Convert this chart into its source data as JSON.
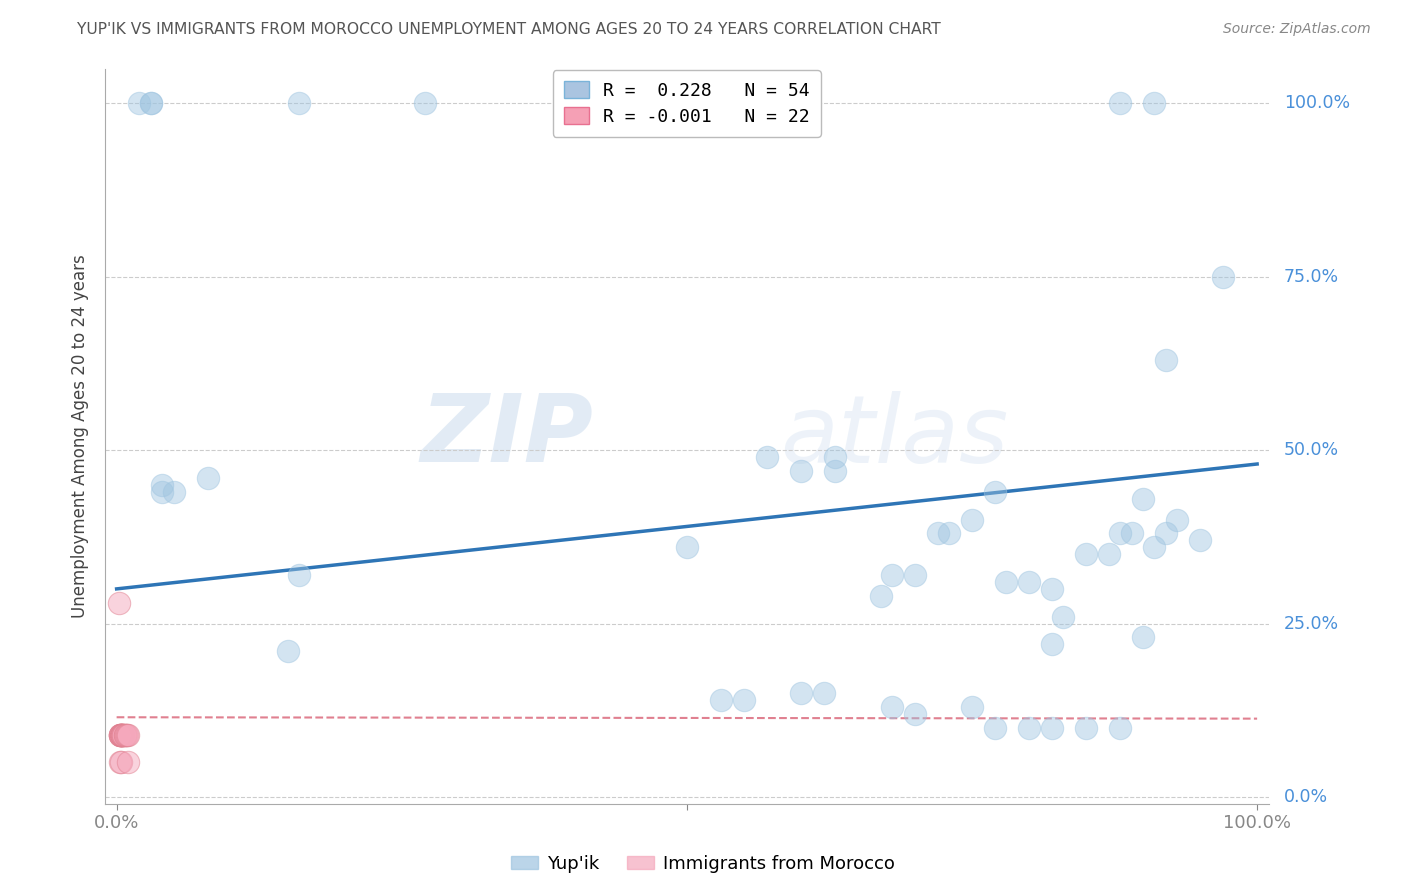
{
  "title": "YUP'IK VS IMMIGRANTS FROM MOROCCO UNEMPLOYMENT AMONG AGES 20 TO 24 YEARS CORRELATION CHART",
  "source": "Source: ZipAtlas.com",
  "ylabel_label": "Unemployment Among Ages 20 to 24 years",
  "ylabel_ticks": [
    "0.0%",
    "25.0%",
    "50.0%",
    "75.0%",
    "100.0%"
  ],
  "legend_entries": [
    {
      "label": "R =  0.228   N = 54",
      "color": "#aac4e0"
    },
    {
      "label": "R = -0.001   N = 22",
      "color": "#f5a0b5"
    }
  ],
  "bottom_legend": [
    "Yup'ik",
    "Immigrants from Morocco"
  ],
  "blue_scatter": [
    [
      0.02,
      1.0
    ],
    [
      0.03,
      1.0
    ],
    [
      0.03,
      1.0
    ],
    [
      0.16,
      1.0
    ],
    [
      0.27,
      1.0
    ],
    [
      0.88,
      1.0
    ],
    [
      0.91,
      1.0
    ],
    [
      0.04,
      0.44
    ],
    [
      0.05,
      0.44
    ],
    [
      0.04,
      0.45
    ],
    [
      0.16,
      0.32
    ],
    [
      0.08,
      0.46
    ],
    [
      0.5,
      0.36
    ],
    [
      0.57,
      0.49
    ],
    [
      0.63,
      0.49
    ],
    [
      0.6,
      0.47
    ],
    [
      0.63,
      0.47
    ],
    [
      0.67,
      0.29
    ],
    [
      0.68,
      0.32
    ],
    [
      0.7,
      0.32
    ],
    [
      0.72,
      0.38
    ],
    [
      0.73,
      0.38
    ],
    [
      0.75,
      0.4
    ],
    [
      0.77,
      0.44
    ],
    [
      0.78,
      0.31
    ],
    [
      0.8,
      0.31
    ],
    [
      0.82,
      0.3
    ],
    [
      0.83,
      0.26
    ],
    [
      0.85,
      0.35
    ],
    [
      0.87,
      0.35
    ],
    [
      0.88,
      0.38
    ],
    [
      0.89,
      0.38
    ],
    [
      0.9,
      0.43
    ],
    [
      0.91,
      0.36
    ],
    [
      0.92,
      0.38
    ],
    [
      0.93,
      0.4
    ],
    [
      0.95,
      0.37
    ],
    [
      0.97,
      0.75
    ],
    [
      0.92,
      0.63
    ],
    [
      0.53,
      0.14
    ],
    [
      0.55,
      0.14
    ],
    [
      0.6,
      0.15
    ],
    [
      0.62,
      0.15
    ],
    [
      0.68,
      0.13
    ],
    [
      0.7,
      0.12
    ],
    [
      0.75,
      0.13
    ],
    [
      0.77,
      0.1
    ],
    [
      0.8,
      0.1
    ],
    [
      0.82,
      0.1
    ],
    [
      0.85,
      0.1
    ],
    [
      0.88,
      0.1
    ],
    [
      0.9,
      0.23
    ],
    [
      0.82,
      0.22
    ],
    [
      0.15,
      0.21
    ]
  ],
  "pink_scatter": [
    [
      0.002,
      0.28
    ],
    [
      0.003,
      0.09
    ],
    [
      0.003,
      0.09
    ],
    [
      0.003,
      0.09
    ],
    [
      0.003,
      0.09
    ],
    [
      0.004,
      0.09
    ],
    [
      0.004,
      0.09
    ],
    [
      0.004,
      0.09
    ],
    [
      0.005,
      0.09
    ],
    [
      0.005,
      0.09
    ],
    [
      0.005,
      0.09
    ],
    [
      0.005,
      0.09
    ],
    [
      0.006,
      0.09
    ],
    [
      0.006,
      0.09
    ],
    [
      0.007,
      0.09
    ],
    [
      0.007,
      0.09
    ],
    [
      0.008,
      0.09
    ],
    [
      0.009,
      0.09
    ],
    [
      0.01,
      0.09
    ],
    [
      0.003,
      0.05
    ],
    [
      0.004,
      0.05
    ],
    [
      0.01,
      0.05
    ]
  ],
  "blue_line": [
    [
      0.0,
      0.3
    ],
    [
      1.0,
      0.48
    ]
  ],
  "pink_line": [
    [
      0.0,
      0.115
    ],
    [
      1.0,
      0.113
    ]
  ],
  "watermark_top": "ZIP",
  "watermark_bot": "atlas",
  "bg_color": "#ffffff",
  "blue_color": "#9ec4e0",
  "pink_color": "#f5a8bc",
  "blue_line_color": "#2e75b6",
  "pink_line_color": "#e08090",
  "title_color": "#555555",
  "tick_color": "#4a90d9",
  "grid_color": "#cccccc",
  "xlim": [
    -0.01,
    1.01
  ],
  "ylim": [
    -0.01,
    1.05
  ]
}
